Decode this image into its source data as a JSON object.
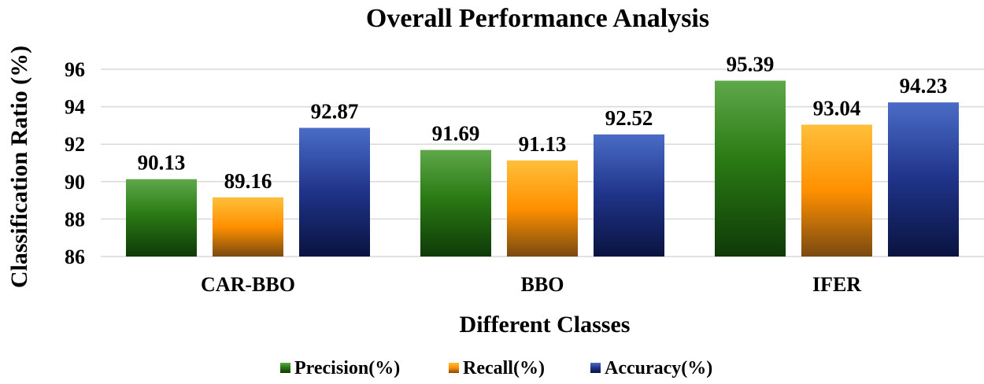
{
  "chart_data": {
    "type": "bar",
    "title": "Overall Performance Analysis",
    "xlabel": "Different Classes",
    "ylabel": "Classification Ratio (%)",
    "categories": [
      "CAR-BBO",
      "BBO",
      "IFER"
    ],
    "series": [
      {
        "name": "Precision(%)",
        "values": [
          90.13,
          91.69,
          95.39
        ],
        "color": "#2e8b1e"
      },
      {
        "name": "Recall(%)",
        "values": [
          89.16,
          91.13,
          93.04
        ],
        "color": "#ff9900"
      },
      {
        "name": "Accuracy(%)",
        "values": [
          92.87,
          92.52,
          94.23
        ],
        "color": "#2c3e9a"
      }
    ],
    "ylim": [
      86,
      96
    ],
    "yticks": [
      86,
      88,
      90,
      92,
      94,
      96
    ],
    "grid": true,
    "legend_position": "bottom"
  }
}
